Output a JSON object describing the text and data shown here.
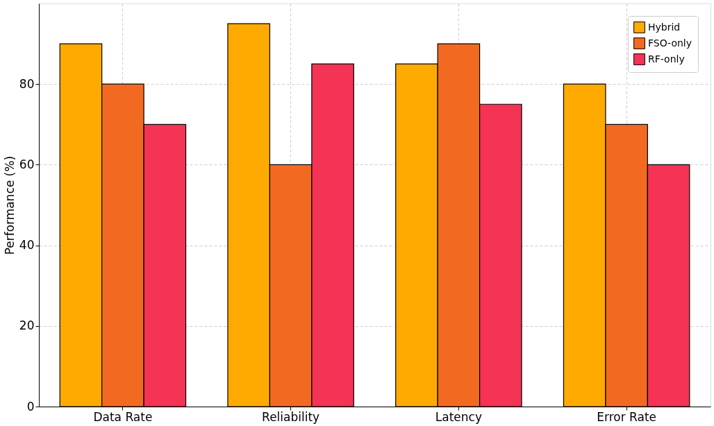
{
  "chart_data": {
    "type": "bar",
    "ylabel": "Performance (%)",
    "categories": [
      "Data Rate",
      "Reliability",
      "Latency",
      "Error Rate"
    ],
    "series": [
      {
        "name": "Hybrid",
        "color": "#ffaa00",
        "values": [
          90,
          95,
          85,
          80
        ]
      },
      {
        "name": "FSO-only",
        "color": "#f26a21",
        "values": [
          80,
          60,
          90,
          70
        ]
      },
      {
        "name": "RF-only",
        "color": "#f43355",
        "values": [
          70,
          85,
          75,
          60
        ]
      }
    ],
    "ylim": [
      0,
      100
    ],
    "yticks": [
      0,
      20,
      40,
      60,
      80
    ],
    "grid": true,
    "legend": "top right"
  }
}
